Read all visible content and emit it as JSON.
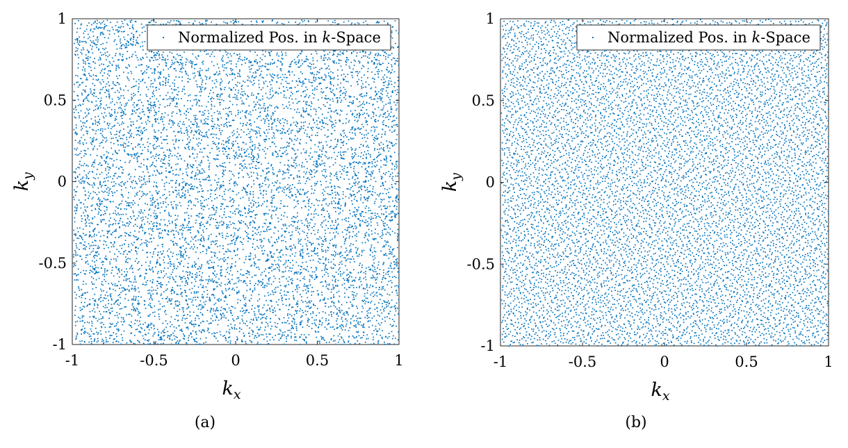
{
  "chart_data": [
    {
      "type": "scatter",
      "panel_label": "(a)",
      "distribution": "uniform-random",
      "series": [
        {
          "name": "Normalized Pos. in k-Space",
          "color": "#0072BD"
        }
      ],
      "legend": {
        "text_prefix": "Normalized Pos. in ",
        "text_var": "k",
        "text_suffix": "-Space",
        "placement": "top-right"
      },
      "xlabel": {
        "base": "k",
        "sub": "x"
      },
      "ylabel": {
        "base": "k",
        "sub": "y"
      },
      "xlim": [
        -1,
        1
      ],
      "ylim": [
        -1,
        1
      ],
      "xticks": [
        "-1",
        "-0.5",
        "0",
        "0.5",
        "1"
      ],
      "yticks": [
        "-1",
        "-0.5",
        "0",
        "0.5",
        "1"
      ],
      "grid": false
    },
    {
      "type": "scatter",
      "panel_label": "(b)",
      "distribution": "low-discrepancy",
      "series": [
        {
          "name": "Normalized Pos. in k-Space",
          "color": "#0072BD"
        }
      ],
      "legend": {
        "text_prefix": "Normalized Pos. in ",
        "text_var": "k",
        "text_suffix": "-Space",
        "placement": "top-right"
      },
      "xlabel": {
        "base": "k",
        "sub": "x"
      },
      "ylabel": {
        "base": "k",
        "sub": "y"
      },
      "xlim": [
        -1,
        1
      ],
      "ylim": [
        -1,
        1
      ],
      "xticks": [
        "-1",
        "-0.5",
        "0",
        "0.5",
        "1"
      ],
      "yticks": [
        "-1",
        "-0.5",
        "0",
        "0.5",
        "1"
      ],
      "grid": false
    }
  ]
}
